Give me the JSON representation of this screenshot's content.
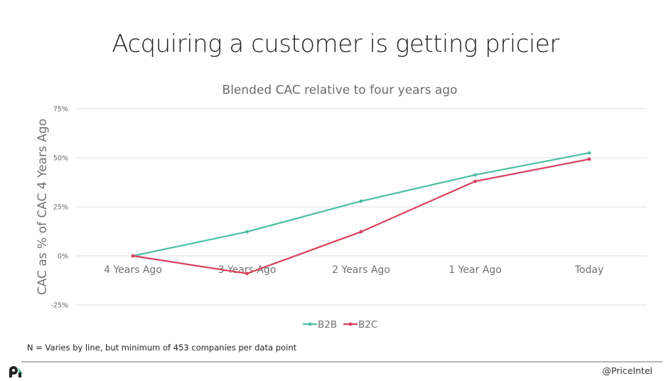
{
  "slide": {
    "title": "Acquiring a customer is getting pricier",
    "footnote": "N = Varies by line, but minimum of 453 companies per data point",
    "handle": "@PriceIntel",
    "logo_icon": "priceintel-logo-icon"
  },
  "chart_data": {
    "type": "line",
    "title": "Blended CAC relative to four years ago",
    "xlabel": "",
    "ylabel": "CAC as % of CAC 4 Years Ago",
    "categories": [
      "4 Years Ago",
      "3 Years Ago",
      "2 Years Ago",
      "1 Year Ago",
      "Today"
    ],
    "ylim": [
      -25,
      75
    ],
    "yticks": [
      -25,
      0,
      25,
      50,
      75
    ],
    "ytick_labels": [
      "-25%",
      "0%",
      "25%",
      "50%",
      "75%"
    ],
    "grid": true,
    "legend_position": "bottom-center",
    "series": [
      {
        "name": "B2B",
        "color": "#4dbfa3",
        "values": [
          0,
          12.3,
          27.9,
          41.3,
          52.5
        ]
      },
      {
        "name": "B2C",
        "color": "#d8415d",
        "values": [
          0,
          -9.0,
          12.3,
          38.0,
          49.3
        ]
      }
    ]
  }
}
